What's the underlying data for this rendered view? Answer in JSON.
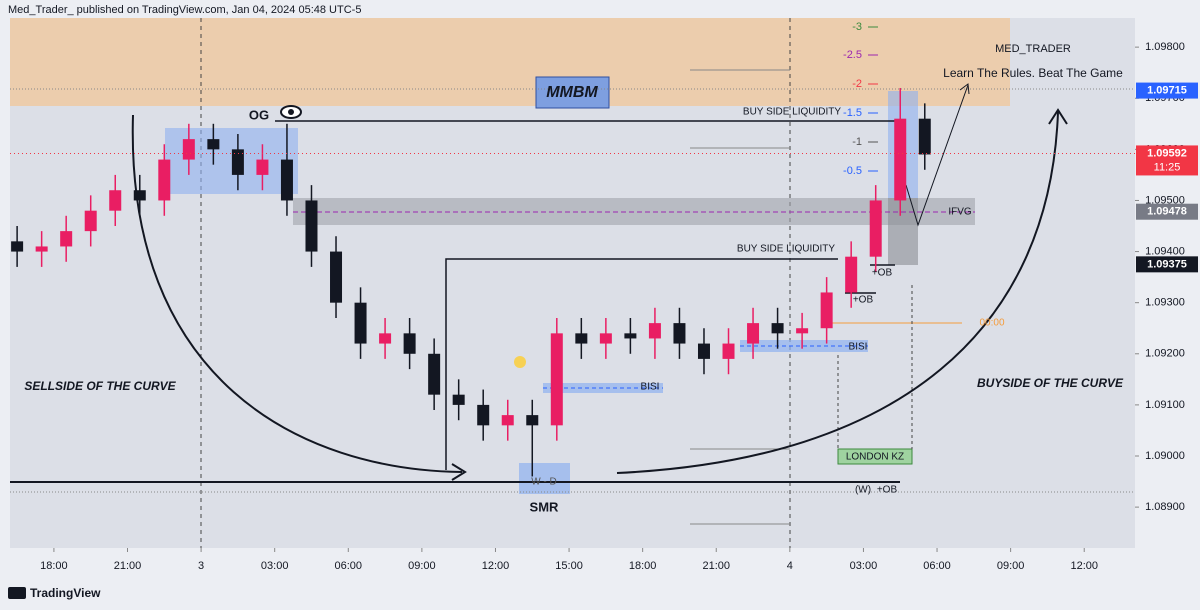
{
  "header": "Med_Trader_ published on TradingView.com, Jan 04, 2024 05:48 UTC-5",
  "footer": "TradingView",
  "chart_data": {
    "type": "candlestick",
    "up_color": "#e91e63",
    "down_color": "#131722",
    "x": [
      -1.5,
      -0.5,
      0.5,
      1.5,
      2.5,
      3.5,
      4.5,
      5.5,
      6.5,
      7.5,
      8.5,
      9.5,
      10.5,
      11.5,
      12.5,
      13.5,
      14.5,
      15.5,
      16.5,
      17.5,
      18.5,
      19.5,
      20.5,
      21.5,
      22.5,
      23.5,
      24.5,
      25.5,
      26.5,
      27.5,
      28.5,
      29.5,
      30.5,
      31.5,
      32.5,
      33.5,
      34.5,
      35.5
    ],
    "open": [
      1.0942,
      1.094,
      1.0941,
      1.0944,
      1.0948,
      1.0952,
      1.095,
      1.0958,
      1.0962,
      1.096,
      1.0955,
      1.0958,
      1.095,
      1.094,
      1.093,
      1.0922,
      1.0924,
      1.092,
      1.0912,
      1.091,
      1.0906,
      1.0908,
      1.0906,
      1.0924,
      1.0922,
      1.0924,
      1.0923,
      1.0926,
      1.0922,
      1.0919,
      1.0922,
      1.0926,
      1.0924,
      1.0925,
      1.0932,
      1.0939,
      1.095,
      1.0966
    ],
    "high": [
      1.0945,
      1.0944,
      1.0947,
      1.0951,
      1.0955,
      1.0955,
      1.0961,
      1.0965,
      1.0965,
      1.0963,
      1.0961,
      1.0965,
      1.0953,
      1.0943,
      1.0933,
      1.0927,
      1.0927,
      1.0923,
      1.0915,
      1.0913,
      1.0911,
      1.0911,
      1.0927,
      1.0927,
      1.0927,
      1.0927,
      1.0929,
      1.0929,
      1.0925,
      1.0925,
      1.0929,
      1.0929,
      1.0928,
      1.0935,
      1.0942,
      1.0953,
      1.0972,
      1.0969
    ],
    "low": [
      1.0937,
      1.0937,
      1.0938,
      1.0941,
      1.0945,
      1.0947,
      1.0947,
      1.0955,
      1.0957,
      1.0952,
      1.0952,
      1.0947,
      1.0937,
      1.0927,
      1.0919,
      1.0919,
      1.0917,
      1.0909,
      1.0907,
      1.0903,
      1.0903,
      1.0896,
      1.0903,
      1.0919,
      1.0919,
      1.092,
      1.0919,
      1.0919,
      1.0916,
      1.0916,
      1.0919,
      1.0921,
      1.0921,
      1.0922,
      1.0929,
      1.0936,
      1.0947,
      1.0956
    ],
    "close": [
      1.094,
      1.0941,
      1.0944,
      1.0948,
      1.0952,
      1.095,
      1.0958,
      1.0962,
      1.096,
      1.0955,
      1.0958,
      1.095,
      1.094,
      1.093,
      1.0922,
      1.0924,
      1.092,
      1.0912,
      1.091,
      1.0906,
      1.0908,
      1.0906,
      1.0924,
      1.0922,
      1.0924,
      1.0923,
      1.0926,
      1.0922,
      1.0919,
      1.0922,
      1.0926,
      1.0924,
      1.0925,
      1.0932,
      1.0939,
      1.095,
      1.0966,
      1.0959
    ],
    "xlim": [
      -1.79,
      44.07
    ],
    "xticks": [
      {
        "value": 0,
        "label": "18:00"
      },
      {
        "value": 3,
        "label": "21:00"
      },
      {
        "value": 6,
        "label": "3"
      },
      {
        "value": 9,
        "label": "03:00"
      },
      {
        "value": 12,
        "label": "06:00"
      },
      {
        "value": 15,
        "label": "09:00"
      },
      {
        "value": 18,
        "label": "12:00"
      },
      {
        "value": 21,
        "label": "15:00"
      },
      {
        "value": 24,
        "label": "18:00"
      },
      {
        "value": 27,
        "label": "21:00"
      },
      {
        "value": 30,
        "label": "4"
      },
      {
        "value": 33,
        "label": "03:00"
      },
      {
        "value": 36,
        "label": "06:00"
      },
      {
        "value": 39,
        "label": "09:00"
      },
      {
        "value": 42,
        "label": "12:00"
      }
    ],
    "ylim": [
      1.0882,
      1.09857
    ],
    "yticks": [
      {
        "value": 1.098,
        "label": "1.09800"
      },
      {
        "value": 1.097,
        "label": "1.09700"
      },
      {
        "value": 1.096,
        "label": "1.09600"
      },
      {
        "value": 1.095,
        "label": "1.09500"
      },
      {
        "value": 1.094,
        "label": "1.09400"
      },
      {
        "value": 1.093,
        "label": "1.09300"
      },
      {
        "value": 1.092,
        "label": "1.09200"
      },
      {
        "value": 1.091,
        "label": "1.09100"
      },
      {
        "value": 1.09,
        "label": "1.09000"
      },
      {
        "value": 1.089,
        "label": "1.08900"
      }
    ],
    "price_labels": [
      {
        "value": 1.09715,
        "label": "1.09715",
        "color": "#2962ff"
      },
      {
        "value": 1.09592,
        "label": "1.09592",
        "color": "#f23645"
      },
      {
        "value": 1.09478,
        "label": "1.09478",
        "color": "#787b86"
      },
      {
        "value": 1.09375,
        "label": "1.09375",
        "color": "#131722"
      }
    ],
    "countdown": "11:25",
    "fib_levels": [
      -3,
      -2.5,
      -2,
      -1.5,
      -1,
      -0.5
    ],
    "annotations": [
      "OG",
      "MMBM",
      "BUY SIDE LIQUIDITY",
      "BUY SIDE LIQUIDITY",
      "IFVG",
      "+OB",
      "+OB",
      "BISI",
      "BISI",
      "SELLSIDE OF THE CURVE",
      "BUYSIDE OF THE CURVE",
      "SMR",
      "W - D",
      "LONDON KZ",
      "(W)",
      "+OB",
      "00:00",
      "MED_TRADER",
      "Learn The Rules. Beat The Game"
    ]
  }
}
